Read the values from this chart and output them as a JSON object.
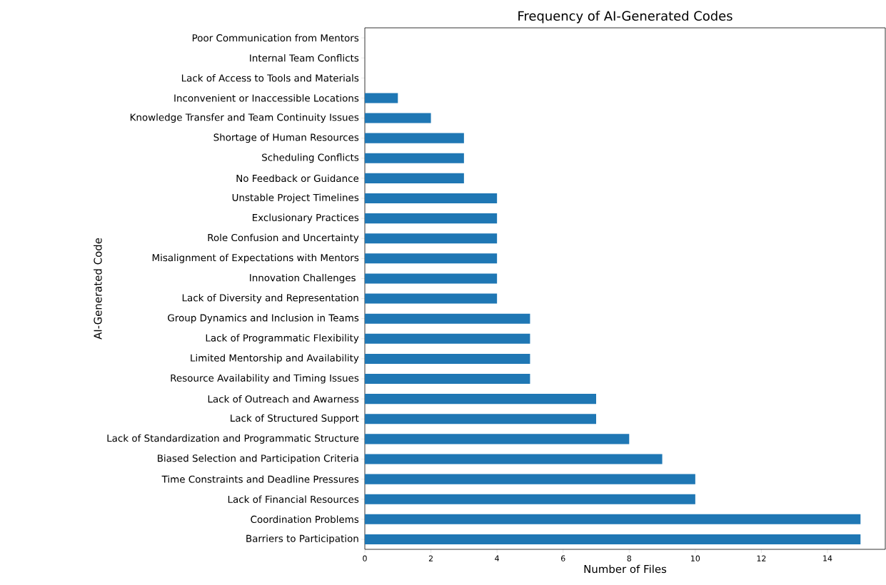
{
  "chart_data": {
    "type": "bar",
    "orientation": "horizontal",
    "title": "Frequency of AI-Generated Codes",
    "xlabel": "Number of Files",
    "ylabel": "AI-Generated Code",
    "categories": [
      "Poor Communication from Mentors",
      "Internal Team Conflicts",
      "Lack of Access to Tools and Materials",
      "Inconvenient or Inaccessible Locations",
      "Knowledge Transfer and Team Continuity Issues",
      "Shortage of Human Resources",
      "Scheduling Conflicts",
      "No Feedback or Guidance",
      "Unstable Project Timelines",
      "Exclusionary Practices",
      "Role Confusion and Uncertainty",
      "Misalignment of Expectations with Mentors",
      "Innovation Challenges ",
      "Lack of Diversity and Representation",
      "Group Dynamics and Inclusion in Teams",
      "Lack of Programmatic Flexibility",
      "Limited Mentorship and Availability",
      "Resource Availability and Timing Issues",
      "Lack of Outreach and Awarness",
      "Lack of Structured Support",
      "Lack of Standardization and Programmatic Structure",
      "Biased Selection and Participation Criteria",
      "Time Constraints and Deadline Pressures",
      "Lack of Financial Resources",
      "Coordination Problems",
      "Barriers to Participation"
    ],
    "values": [
      0,
      0,
      0,
      1,
      2,
      3,
      3,
      3,
      4,
      4,
      4,
      4,
      4,
      4,
      5,
      5,
      5,
      5,
      7,
      7,
      8,
      9,
      10,
      10,
      15,
      15
    ],
    "color": "#1f77b4",
    "xlim": [
      0,
      15.75
    ],
    "xticks": [
      0,
      2,
      4,
      6,
      8,
      10,
      12,
      14
    ],
    "grid": false
  }
}
